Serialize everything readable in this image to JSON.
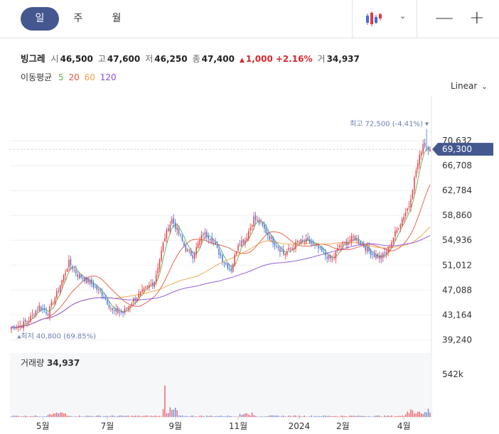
{
  "tabs": [
    {
      "label": "일",
      "active": true
    },
    {
      "label": "주",
      "active": false
    },
    {
      "label": "월",
      "active": false
    }
  ],
  "chart_type_icon": "candlestick-icon",
  "zoom_out_label": "—",
  "zoom_in_label": "+",
  "quote": {
    "name": "빙그레",
    "open_label": "시",
    "open": "46,500",
    "high_label": "고",
    "high": "47,600",
    "low_label": "저",
    "low": "46,250",
    "close_label": "종",
    "close": "47,400",
    "change": "1,000",
    "change_pct": "+2.16%",
    "volume_label": "거",
    "volume": "34,937"
  },
  "ma_legend": {
    "label": "이동평균",
    "items": [
      {
        "period": "5",
        "color": "#5bb04a"
      },
      {
        "period": "20",
        "color": "#e8543a"
      },
      {
        "period": "60",
        "color": "#f0a040"
      },
      {
        "period": "120",
        "color": "#8a4fd8"
      }
    ]
  },
  "scale_mode": "Linear",
  "colors": {
    "up": "#e8373f",
    "down": "#3f6fd8",
    "price_tag": "#44578f",
    "annotation": "#6e7fb5"
  },
  "chart_data": {
    "type": "candlestick",
    "x_ticks": [
      "5월",
      "7월",
      "9월",
      "11월",
      "2024",
      "2월",
      "4월"
    ],
    "x_tick_index": [
      18,
      55,
      94,
      130,
      165,
      190,
      225
    ],
    "y_ticks": [
      39240,
      43164,
      47088,
      51012,
      54936,
      58860,
      62784,
      66708,
      70632
    ],
    "y_range": [
      37700,
      76600
    ],
    "current_price": 69300,
    "current_price_label": "69,300",
    "high_annotation": "최고 72,500 (-4.41%) ▾",
    "low_annotation": "▴최저 40,800 (69.85%)",
    "high_index": 238,
    "low_index": 3,
    "volume_title": "거래량",
    "volume_value": "34,937",
    "volume_tick": "542k",
    "volume_max": 542000,
    "anchors": [
      [
        0,
        41200
      ],
      [
        6,
        41600
      ],
      [
        10,
        42400
      ],
      [
        16,
        44500
      ],
      [
        21,
        43500
      ],
      [
        26,
        46500
      ],
      [
        33,
        51400
      ],
      [
        38,
        49500
      ],
      [
        44,
        48500
      ],
      [
        52,
        46500
      ],
      [
        58,
        43800
      ],
      [
        64,
        43500
      ],
      [
        70,
        45500
      ],
      [
        76,
        47000
      ],
      [
        82,
        48500
      ],
      [
        88,
        55500
      ],
      [
        92,
        58200
      ],
      [
        96,
        56000
      ],
      [
        100,
        53500
      ],
      [
        104,
        52500
      ],
      [
        110,
        56000
      ],
      [
        114,
        55500
      ],
      [
        118,
        53500
      ],
      [
        122,
        51500
      ],
      [
        126,
        50300
      ],
      [
        130,
        54500
      ],
      [
        134,
        55000
      ],
      [
        139,
        58400
      ],
      [
        143,
        57500
      ],
      [
        148,
        55400
      ],
      [
        152,
        54200
      ],
      [
        156,
        52800
      ],
      [
        160,
        53500
      ],
      [
        164,
        54600
      ],
      [
        168,
        54800
      ],
      [
        172,
        54500
      ],
      [
        176,
        53600
      ],
      [
        180,
        52600
      ],
      [
        184,
        51800
      ],
      [
        188,
        54000
      ],
      [
        192,
        54600
      ],
      [
        196,
        55400
      ],
      [
        200,
        54600
      ],
      [
        204,
        53400
      ],
      [
        208,
        52600
      ],
      [
        212,
        52200
      ],
      [
        216,
        53500
      ],
      [
        220,
        56000
      ],
      [
        224,
        58300
      ],
      [
        228,
        60500
      ],
      [
        232,
        66000
      ],
      [
        236,
        70200
      ],
      [
        240,
        69300
      ]
    ]
  }
}
